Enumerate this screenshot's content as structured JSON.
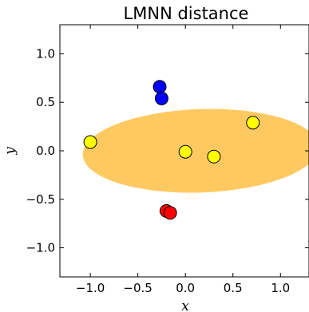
{
  "chart_data": {
    "type": "scatter",
    "title": "LMNN distance",
    "xlabel": "x",
    "ylabel": "y",
    "xlim": [
      -1.32,
      1.3
    ],
    "ylim": [
      -1.3,
      1.3
    ],
    "xticks": [
      -1.0,
      -0.5,
      0.0,
      0.5,
      1.0
    ],
    "xtick_labels": [
      "−1.0",
      "−0.5",
      "0.0",
      "0.5",
      "1.0"
    ],
    "yticks": [
      1.0,
      0.5,
      0.0,
      -0.5,
      -1.0
    ],
    "ytick_labels": [
      "1.0",
      "0.5",
      "0.0",
      "−0.5",
      "−1.0"
    ],
    "grid": false,
    "ellipse": {
      "center": [
        0.16,
        0.0
      ],
      "semi_axis_x": 1.24,
      "semi_axis_y": 0.43,
      "angle_deg": 2,
      "color": "#ffbf47",
      "opacity": 0.85
    },
    "series": [
      {
        "color": "#0000ff",
        "points": [
          [
            -0.27,
            0.66
          ],
          [
            -0.25,
            0.54
          ]
        ]
      },
      {
        "color": "#ffff00",
        "points": [
          [
            -1.0,
            0.09
          ],
          [
            0.0,
            -0.01
          ],
          [
            0.3,
            -0.06
          ],
          [
            0.71,
            0.29
          ]
        ]
      },
      {
        "color": "#ff0000",
        "points": [
          [
            -0.2,
            -0.62
          ],
          [
            -0.16,
            -0.64
          ]
        ]
      }
    ]
  }
}
